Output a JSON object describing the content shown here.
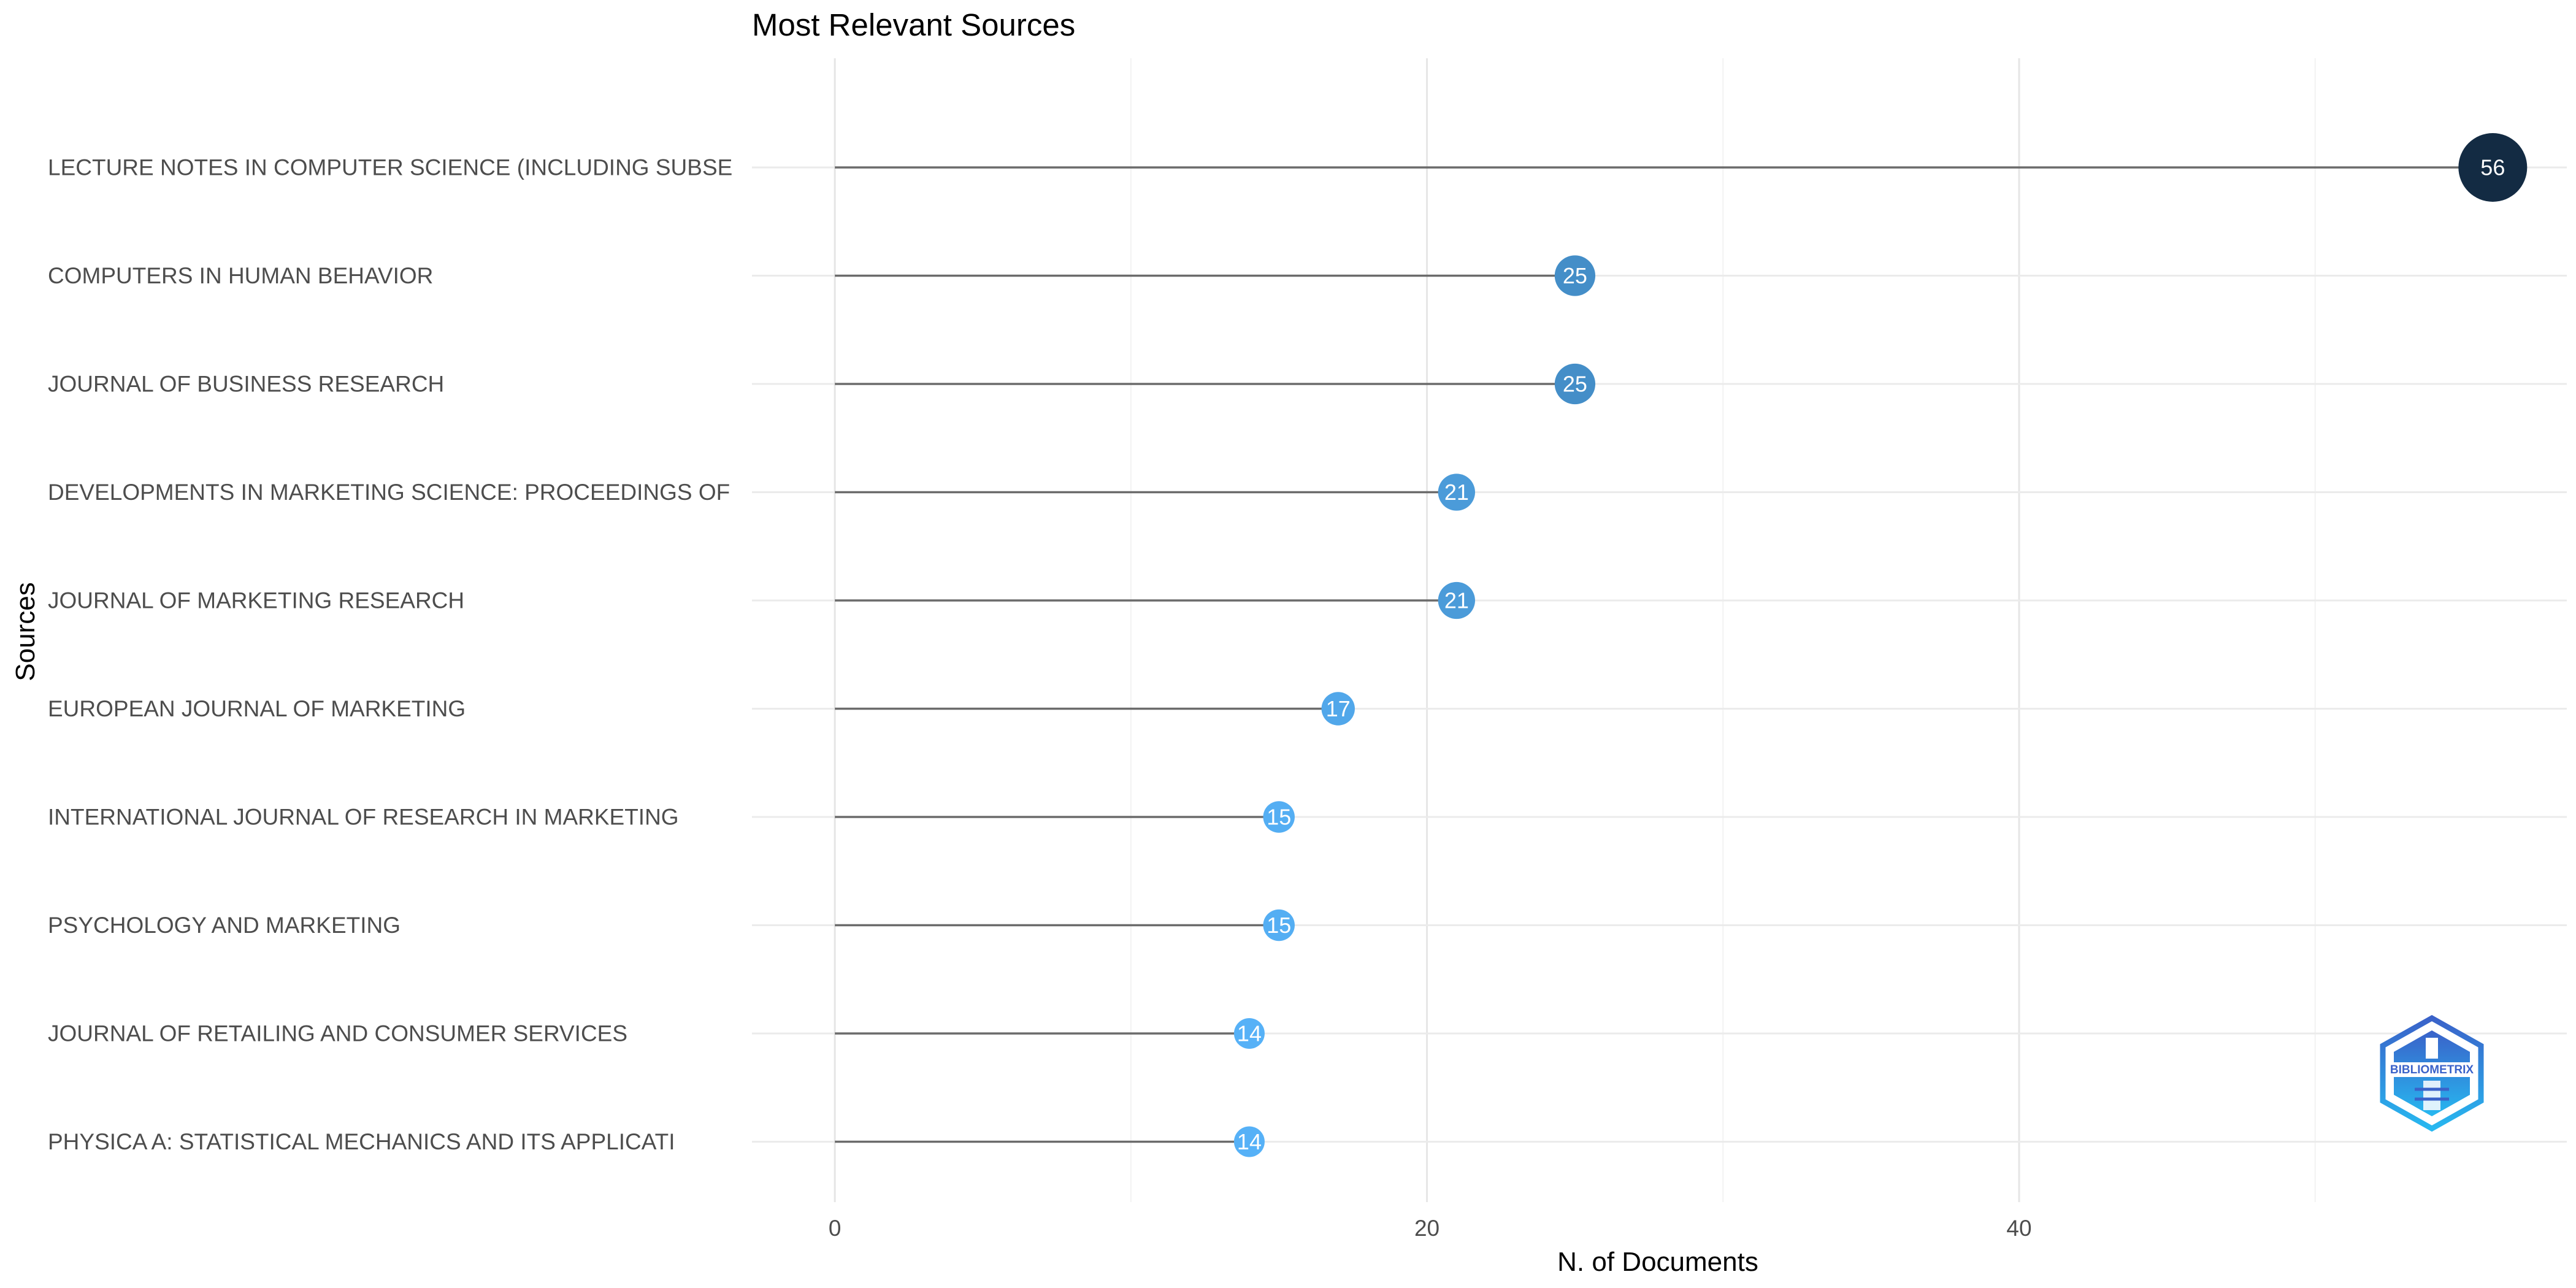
{
  "chart_data": {
    "type": "lollipop",
    "title": "Most Relevant Sources",
    "xlabel": "N. of Documents",
    "ylabel": "Sources",
    "xlim": [
      -2.8,
      58.5
    ],
    "x_ticks": [
      0,
      20,
      40
    ],
    "grid": true,
    "categories": [
      "LECTURE NOTES IN COMPUTER SCIENCE (INCLUDING SUBSE",
      "COMPUTERS IN HUMAN BEHAVIOR",
      "JOURNAL OF BUSINESS RESEARCH",
      "DEVELOPMENTS IN MARKETING SCIENCE: PROCEEDINGS OF",
      "JOURNAL OF MARKETING RESEARCH",
      "EUROPEAN JOURNAL OF MARKETING",
      "INTERNATIONAL JOURNAL OF RESEARCH IN MARKETING",
      "PSYCHOLOGY AND MARKETING",
      "JOURNAL OF RETAILING AND CONSUMER SERVICES",
      "PHYSICA A: STATISTICAL MECHANICS AND ITS APPLICATI"
    ],
    "values": [
      56,
      25,
      25,
      21,
      21,
      17,
      15,
      15,
      14,
      14
    ],
    "color_scale": {
      "low": "#56B1F7",
      "high": "#132B43"
    }
  },
  "logo": {
    "text": "BIBLIOMETRIX"
  }
}
